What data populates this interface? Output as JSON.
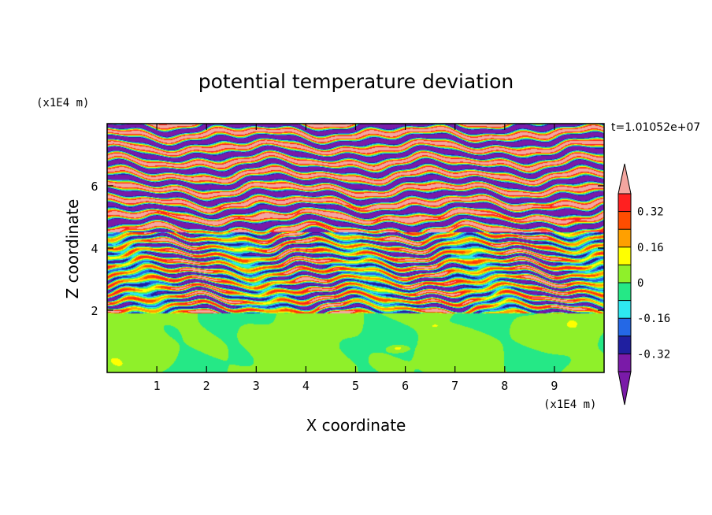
{
  "chart_data": {
    "type": "heatmap",
    "title": "potential temperature deviation",
    "xlabel": "X coordinate",
    "ylabel": "Z coordinate",
    "x_unit": "(x1E4 m)",
    "z_unit": "(x1E4 m)",
    "time_label": "t=1.01052e+07",
    "xlim": [
      0,
      10
    ],
    "zlim": [
      0,
      8
    ],
    "x_ticks": [
      "1",
      "2",
      "3",
      "4",
      "5",
      "6",
      "7",
      "8",
      "9"
    ],
    "z_ticks": [
      "2",
      "4",
      "6"
    ],
    "colorbar": {
      "levels": [
        -0.4,
        -0.32,
        -0.24,
        -0.16,
        -0.08,
        0,
        0.08,
        0.16,
        0.24,
        0.32,
        0.4
      ],
      "labels": [
        "0.32",
        "0.16",
        "0",
        "-0.16",
        "-0.32"
      ],
      "label_values": [
        0.32,
        0.16,
        0,
        -0.16,
        -0.32
      ],
      "colors_bottom_to_top": [
        "#7a1aa8",
        "#1f1fa0",
        "#2468e6",
        "#2ee8f0",
        "#25e886",
        "#8ff02a",
        "#ffff00",
        "#ffa000",
        "#ff4d00",
        "#ff2020",
        "#f4a6a0"
      ],
      "over_color": "#f4a6a0",
      "under_color": "#7a1aa8"
    },
    "layers": [
      {
        "region": "lower layer (z < 1.9)",
        "dominant": "green",
        "range": [
          -0.08,
          0.08
        ]
      },
      {
        "region": "middle layer (z 1.9-4.5)",
        "dominant": "mixed",
        "range": [
          -0.4,
          0.4
        ]
      },
      {
        "region": "upper layer (z > 4.5)",
        "dominant": "pink/purple alternating",
        "range": [
          -0.4,
          0.4
        ]
      }
    ]
  }
}
